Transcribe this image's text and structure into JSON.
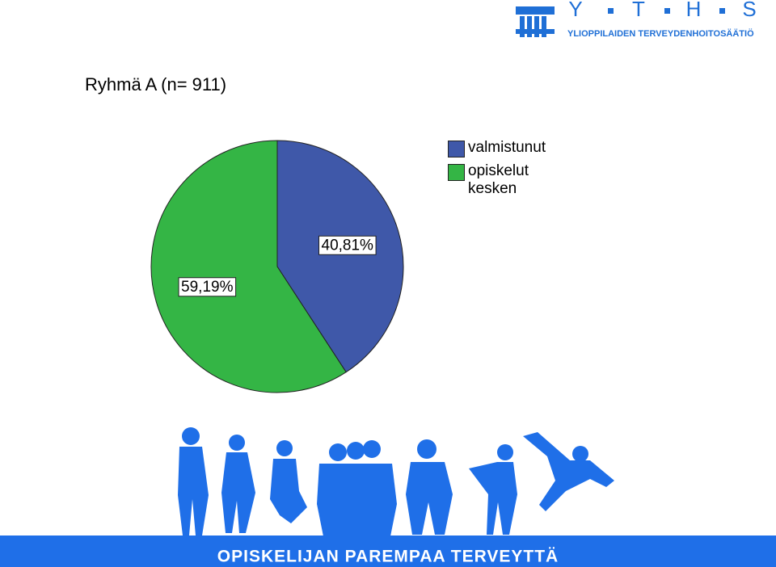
{
  "logo": {
    "letters": [
      "Y",
      "T",
      "H",
      "S"
    ],
    "subtitle": "YLIOPPILAIDEN TERVEYDENHOITOSÄÄTIÖ"
  },
  "footer": "OPISKELIJAN PAREMPAA TERVEYTTÄ",
  "chart_data": {
    "type": "pie",
    "title": "Ryhmä A (n= 911)",
    "categories": [
      "valmistunut",
      "opiskelut kesken"
    ],
    "values": [
      40.81,
      59.19
    ],
    "value_labels": [
      "40,81%",
      "59,19%"
    ],
    "colors": [
      "#3f58a9",
      "#34b545"
    ],
    "legend": "right"
  }
}
